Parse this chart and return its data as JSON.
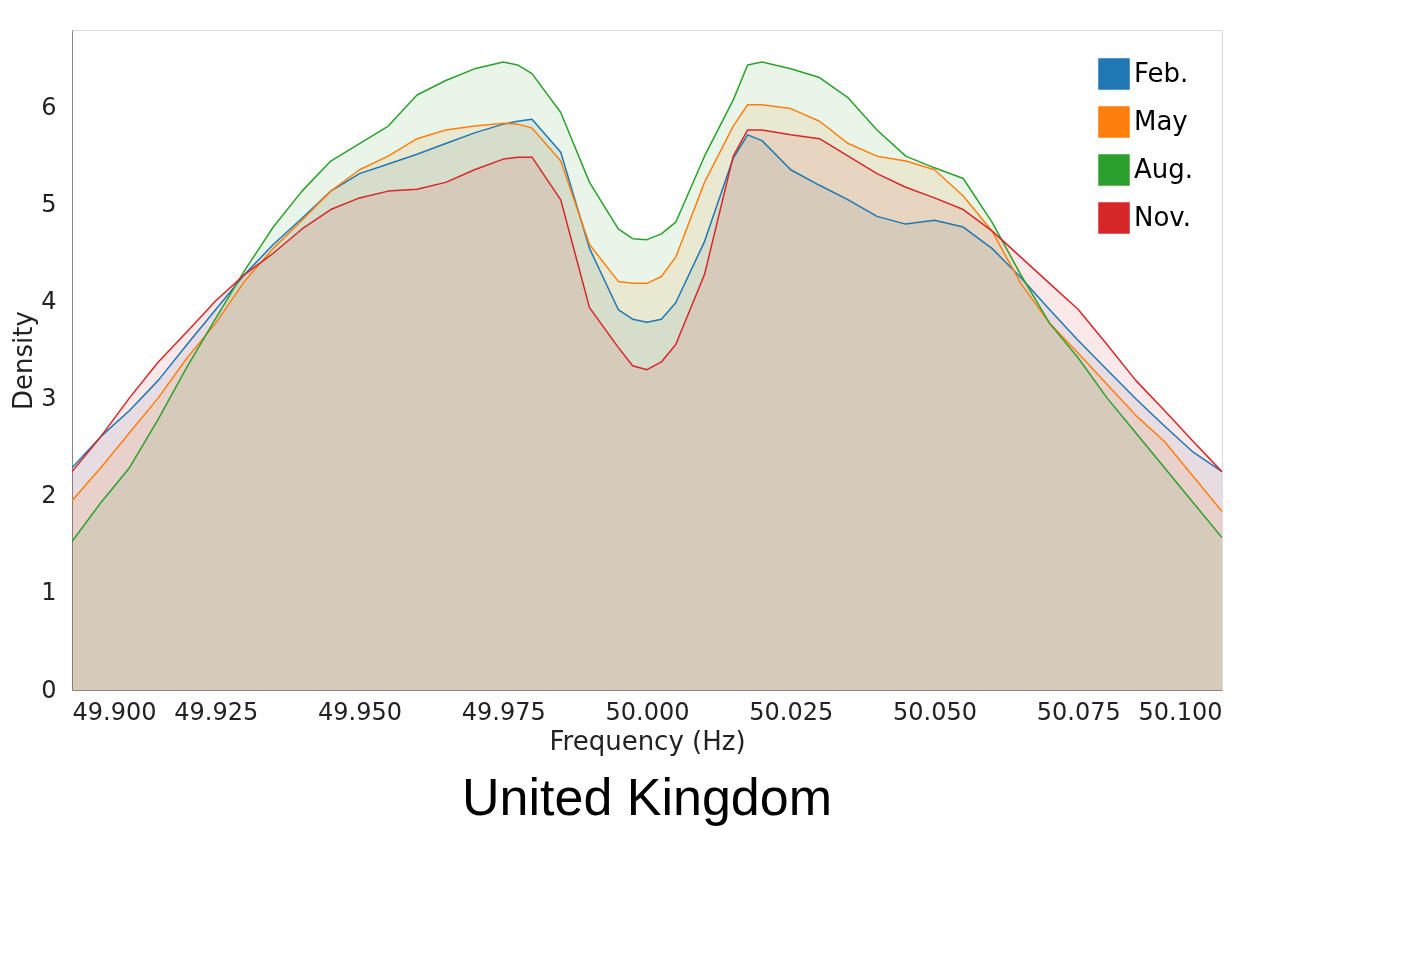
{
  "chart_data": {
    "type": "area",
    "title": "United Kingdom",
    "xlabel": "Frequency (Hz)",
    "ylabel": "Density",
    "x": [
      49.9,
      49.905,
      49.91,
      49.915,
      49.92,
      49.925,
      49.93,
      49.935,
      49.94,
      49.945,
      49.95,
      49.955,
      49.96,
      49.965,
      49.97,
      49.975,
      49.9775,
      49.98,
      49.985,
      49.99,
      49.995,
      49.9975,
      50.0,
      50.0025,
      50.005,
      50.01,
      50.015,
      50.0175,
      50.02,
      50.025,
      50.03,
      50.035,
      50.04,
      50.045,
      50.05,
      50.055,
      50.06,
      50.065,
      50.07,
      50.075,
      50.08,
      50.085,
      50.09,
      50.095,
      50.1
    ],
    "series": [
      {
        "name": "Feb.",
        "color": "#1f77b4",
        "values": [
          2.29,
          2.61,
          2.88,
          3.19,
          3.56,
          3.92,
          4.28,
          4.59,
          4.86,
          5.14,
          5.32,
          5.42,
          5.52,
          5.63,
          5.74,
          5.83,
          5.86,
          5.88,
          5.54,
          4.55,
          3.92,
          3.82,
          3.79,
          3.82,
          3.99,
          4.62,
          5.48,
          5.72,
          5.66,
          5.36,
          5.2,
          5.05,
          4.88,
          4.8,
          4.84,
          4.77,
          4.55,
          4.25,
          3.92,
          3.6,
          3.3,
          3.0,
          2.72,
          2.45,
          2.25
        ]
      },
      {
        "name": "May",
        "color": "#ff7f0e",
        "values": [
          1.95,
          2.29,
          2.65,
          3.01,
          3.42,
          3.78,
          4.21,
          4.55,
          4.84,
          5.14,
          5.36,
          5.5,
          5.68,
          5.77,
          5.81,
          5.84,
          5.83,
          5.79,
          5.45,
          4.59,
          4.21,
          4.19,
          4.19,
          4.26,
          4.46,
          5.23,
          5.81,
          6.03,
          6.03,
          5.99,
          5.86,
          5.63,
          5.5,
          5.45,
          5.36,
          5.09,
          4.73,
          4.19,
          3.78,
          3.47,
          3.15,
          2.83,
          2.56,
          2.2,
          1.84
        ]
      },
      {
        "name": "Aug.",
        "color": "#2ca02c",
        "values": [
          1.53,
          1.93,
          2.29,
          2.79,
          3.33,
          3.83,
          4.32,
          4.77,
          5.14,
          5.45,
          5.63,
          5.81,
          6.13,
          6.28,
          6.4,
          6.47,
          6.44,
          6.35,
          5.95,
          5.23,
          4.75,
          4.65,
          4.64,
          4.7,
          4.82,
          5.5,
          6.08,
          6.44,
          6.47,
          6.4,
          6.31,
          6.1,
          5.77,
          5.5,
          5.38,
          5.27,
          4.82,
          4.28,
          3.78,
          3.42,
          3.01,
          2.65,
          2.29,
          1.93,
          1.57
        ]
      },
      {
        "name": "Nov.",
        "color": "#d62728",
        "values": [
          2.25,
          2.61,
          3.01,
          3.38,
          3.69,
          4.01,
          4.28,
          4.5,
          4.75,
          4.95,
          5.07,
          5.14,
          5.16,
          5.23,
          5.36,
          5.47,
          5.49,
          5.49,
          5.05,
          3.94,
          3.53,
          3.34,
          3.3,
          3.38,
          3.56,
          4.28,
          5.5,
          5.77,
          5.77,
          5.72,
          5.68,
          5.5,
          5.32,
          5.18,
          5.07,
          4.95,
          4.73,
          4.46,
          4.19,
          3.92,
          3.56,
          3.19,
          2.88,
          2.56,
          2.25
        ]
      }
    ],
    "xlim": [
      49.9,
      50.1
    ],
    "xticks": [
      {
        "value": 49.9,
        "label": "49.900"
      },
      {
        "value": 49.925,
        "label": "49.925"
      },
      {
        "value": 49.95,
        "label": "49.950"
      },
      {
        "value": 49.975,
        "label": "49.975"
      },
      {
        "value": 50.0,
        "label": "50.000"
      },
      {
        "value": 50.025,
        "label": "50.025"
      },
      {
        "value": 50.05,
        "label": "50.050"
      },
      {
        "value": 50.075,
        "label": "50.075"
      },
      {
        "value": 50.1,
        "label": "50.100"
      }
    ],
    "ylim": [
      0,
      6.8
    ],
    "yticks": [
      0,
      1,
      2,
      3,
      4,
      5,
      6
    ],
    "grid": false,
    "legend": "top right"
  }
}
